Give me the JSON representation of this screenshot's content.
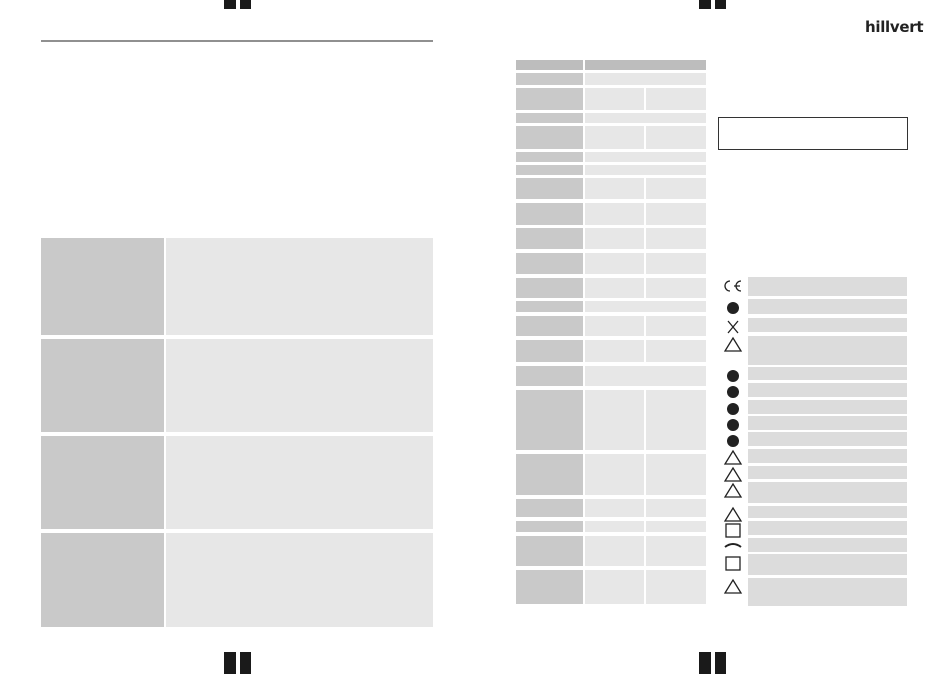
{
  "header": {
    "logo": "hillvert"
  }
}
